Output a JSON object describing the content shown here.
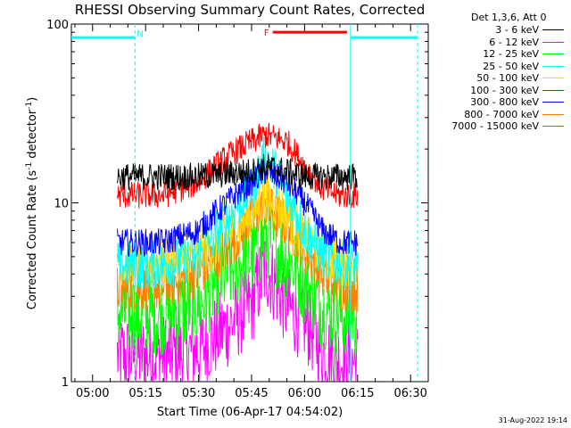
{
  "chart_data": {
    "type": "line",
    "title": "RHESSI Observing Summary Count Rates, Corrected",
    "xlabel": "Start Time (06-Apr-17 04:54:02)",
    "ylabel_prefix": "Corrected Count Rate (s",
    "ylabel_sup1": "-1",
    "ylabel_mid": " detector",
    "ylabel_sup2": "-1",
    "ylabel_suffix": ")",
    "xlim": [
      "04:54",
      "06:35"
    ],
    "ylim": [
      1,
      100
    ],
    "yscale": "log",
    "x_ticks": [
      "05:00",
      "05:15",
      "05:30",
      "05:45",
      "06:00",
      "06:15",
      "06:30"
    ],
    "y_ticks": [
      "1",
      "10",
      "100"
    ],
    "legend_title": "Det 1,3,6, Att 0",
    "legend_position": "top-right",
    "series": [
      {
        "name": "3 - 6 keV",
        "color": "#000000",
        "x": [
          "05:07",
          "05:10",
          "05:20",
          "05:30",
          "05:38",
          "05:45",
          "05:49",
          "05:55",
          "06:00",
          "06:05",
          "06:10",
          "06:15"
        ],
        "y": [
          14,
          14,
          14,
          14,
          14.5,
          15,
          16,
          15,
          14,
          14,
          14,
          14
        ]
      },
      {
        "name": "6 - 12 keV",
        "color": "#ff00ff",
        "x": [
          "05:07",
          "05:10",
          "05:20",
          "05:30",
          "05:38",
          "05:45",
          "05:49",
          "05:55",
          "06:00",
          "06:05",
          "06:10",
          "06:15"
        ],
        "y": [
          1.4,
          1.4,
          1.4,
          1.5,
          2,
          2.7,
          4.3,
          2.6,
          2.2,
          1.5,
          1.3,
          1.3
        ]
      },
      {
        "name": "12 - 25 keV",
        "color": "#00ff00",
        "x": [
          "05:07",
          "05:10",
          "05:20",
          "05:30",
          "05:38",
          "05:45",
          "05:49",
          "05:55",
          "06:00",
          "06:05",
          "06:10",
          "06:15"
        ],
        "y": [
          2.4,
          2.4,
          2.4,
          2.7,
          4,
          5,
          6.5,
          5,
          3.5,
          2.6,
          2.4,
          2.4
        ]
      },
      {
        "name": "25 - 50 keV",
        "color": "#00ffff",
        "x": [
          "05:07",
          "05:10",
          "05:20",
          "05:30",
          "05:38",
          "05:45",
          "05:49",
          "05:55",
          "06:00",
          "06:05",
          "06:10",
          "06:15"
        ],
        "y": [
          4.5,
          4.5,
          4.5,
          5,
          8,
          12,
          18,
          11,
          7,
          5,
          4.5,
          4.5
        ]
      },
      {
        "name": "50 - 100 keV",
        "color": "#ffd700",
        "x": [
          "05:07",
          "05:10",
          "05:20",
          "05:30",
          "05:38",
          "05:45",
          "05:49",
          "05:55",
          "06:00",
          "06:05",
          "06:10",
          "06:15"
        ],
        "y": [
          4.7,
          4.7,
          4.7,
          5,
          6.5,
          8.5,
          11,
          8.5,
          6.5,
          5,
          4.7,
          4.7
        ]
      },
      {
        "name": "100 - 300 keV",
        "color": "#ff0000",
        "x": [
          "05:07",
          "05:10",
          "05:20",
          "05:30",
          "05:38",
          "05:45",
          "05:49",
          "05:55",
          "06:00",
          "06:05",
          "06:10",
          "06:15"
        ],
        "y": [
          11,
          11,
          11,
          13,
          18,
          22,
          24,
          22,
          16,
          12,
          11,
          11
        ]
      },
      {
        "name": "300 - 800 keV",
        "color": "#0000ff",
        "x": [
          "05:07",
          "05:10",
          "05:20",
          "05:30",
          "05:38",
          "05:45",
          "05:49",
          "05:55",
          "06:00",
          "06:05",
          "06:10",
          "06:15"
        ],
        "y": [
          6,
          6,
          6,
          7,
          10,
          13,
          15,
          13,
          10,
          7,
          6,
          6
        ]
      },
      {
        "name": "800 - 7000 keV",
        "color": "#ff8000",
        "x": [
          "05:07",
          "05:10",
          "05:20",
          "05:30",
          "05:38",
          "05:45",
          "05:49",
          "05:55",
          "06:00",
          "06:05",
          "06:10",
          "06:15"
        ],
        "y": [
          3.3,
          3.3,
          3.4,
          4,
          5.5,
          8,
          9.5,
          7.5,
          5.5,
          4,
          3.4,
          3.3
        ]
      },
      {
        "name": "7000 - 15000 keV",
        "color": "#808000",
        "x": [],
        "y": []
      }
    ],
    "annotations": {
      "night_periods": {
        "color": "#00ffff",
        "label": "N",
        "intervals": [
          [
            "04:54",
            "05:12"
          ],
          [
            "06:13",
            "06:32"
          ]
        ],
        "bar_y": 84,
        "label_x": "05:12:30"
      },
      "flare_period": {
        "color": "#ff0000",
        "label": "F",
        "interval": [
          "05:51",
          "06:12"
        ],
        "bar_y": 90,
        "label_x": "05:48:30"
      }
    }
  },
  "footer": {
    "timestamp": "31-Aug-2022 19:14"
  }
}
